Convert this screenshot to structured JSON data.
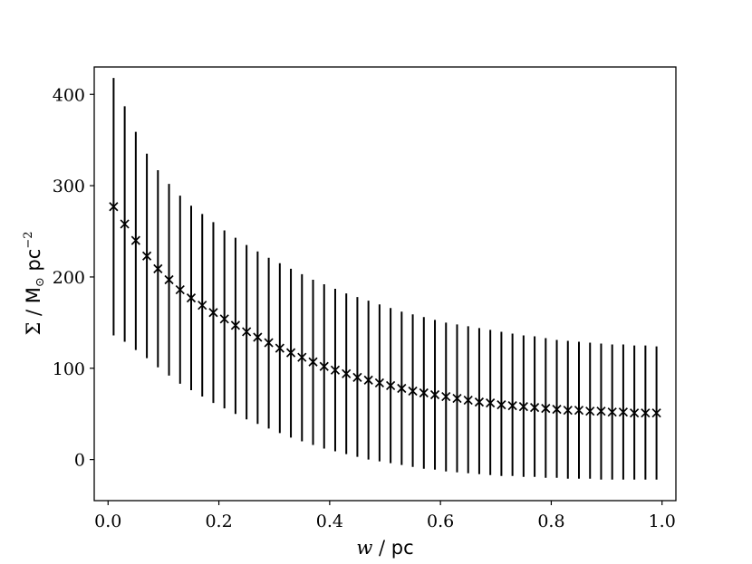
{
  "chart_data": {
    "type": "scatter",
    "xlabel": {
      "var": "w",
      "sep": " / ",
      "unit": "pc"
    },
    "ylabel": {
      "var": "Σ",
      "sep": " / ",
      "unit_main": "M",
      "unit_sub": "⊙",
      "unit_pc": " pc",
      "unit_exp": "−2"
    },
    "xlim": [
      -0.025,
      1.025
    ],
    "ylim": [
      -45,
      430
    ],
    "xticks": [
      {
        "value": 0.0,
        "label": "0.0"
      },
      {
        "value": 0.2,
        "label": "0.2"
      },
      {
        "value": 0.4,
        "label": "0.4"
      },
      {
        "value": 0.6,
        "label": "0.6"
      },
      {
        "value": 0.8,
        "label": "0.8"
      },
      {
        "value": 1.0,
        "label": "1.0"
      }
    ],
    "yticks": [
      {
        "value": 0,
        "label": "0"
      },
      {
        "value": 100,
        "label": "100"
      },
      {
        "value": 200,
        "label": "200"
      },
      {
        "value": 300,
        "label": "300"
      },
      {
        "value": 400,
        "label": "400"
      }
    ],
    "grid": false,
    "marker": "x",
    "color": "#000000",
    "series": [
      {
        "points": [
          {
            "x": 0.01,
            "y": 277,
            "lo": 136,
            "hi": 418
          },
          {
            "x": 0.03,
            "y": 258,
            "lo": 129,
            "hi": 387
          },
          {
            "x": 0.05,
            "y": 240,
            "lo": 120,
            "hi": 359
          },
          {
            "x": 0.07,
            "y": 223,
            "lo": 111,
            "hi": 335
          },
          {
            "x": 0.09,
            "y": 209,
            "lo": 101,
            "hi": 317
          },
          {
            "x": 0.11,
            "y": 197,
            "lo": 92,
            "hi": 302
          },
          {
            "x": 0.13,
            "y": 186,
            "lo": 83,
            "hi": 289
          },
          {
            "x": 0.15,
            "y": 177,
            "lo": 76,
            "hi": 278
          },
          {
            "x": 0.17,
            "y": 169,
            "lo": 69,
            "hi": 269
          },
          {
            "x": 0.19,
            "y": 161,
            "lo": 62,
            "hi": 260
          },
          {
            "x": 0.21,
            "y": 154,
            "lo": 56,
            "hi": 251
          },
          {
            "x": 0.23,
            "y": 147,
            "lo": 50,
            "hi": 243
          },
          {
            "x": 0.25,
            "y": 140,
            "lo": 44,
            "hi": 235
          },
          {
            "x": 0.27,
            "y": 134,
            "lo": 39,
            "hi": 228
          },
          {
            "x": 0.29,
            "y": 128,
            "lo": 34,
            "hi": 221
          },
          {
            "x": 0.31,
            "y": 122,
            "lo": 29,
            "hi": 215
          },
          {
            "x": 0.33,
            "y": 117,
            "lo": 24,
            "hi": 209
          },
          {
            "x": 0.35,
            "y": 112,
            "lo": 20,
            "hi": 203
          },
          {
            "x": 0.37,
            "y": 107,
            "lo": 16,
            "hi": 197
          },
          {
            "x": 0.39,
            "y": 102,
            "lo": 12,
            "hi": 192
          },
          {
            "x": 0.41,
            "y": 98,
            "lo": 9,
            "hi": 187
          },
          {
            "x": 0.43,
            "y": 94,
            "lo": 6,
            "hi": 182
          },
          {
            "x": 0.45,
            "y": 90,
            "lo": 3,
            "hi": 178
          },
          {
            "x": 0.47,
            "y": 87,
            "lo": 0,
            "hi": 174
          },
          {
            "x": 0.49,
            "y": 84,
            "lo": -2,
            "hi": 170
          },
          {
            "x": 0.51,
            "y": 81,
            "lo": -4,
            "hi": 166
          },
          {
            "x": 0.53,
            "y": 78,
            "lo": -6,
            "hi": 162
          },
          {
            "x": 0.55,
            "y": 75,
            "lo": -8,
            "hi": 159
          },
          {
            "x": 0.57,
            "y": 73,
            "lo": -10,
            "hi": 156
          },
          {
            "x": 0.59,
            "y": 71,
            "lo": -11,
            "hi": 153
          },
          {
            "x": 0.61,
            "y": 69,
            "lo": -13,
            "hi": 150
          },
          {
            "x": 0.63,
            "y": 67,
            "lo": -14,
            "hi": 148
          },
          {
            "x": 0.65,
            "y": 65,
            "lo": -15,
            "hi": 146
          },
          {
            "x": 0.67,
            "y": 63,
            "lo": -16,
            "hi": 144
          },
          {
            "x": 0.69,
            "y": 62,
            "lo": -17,
            "hi": 142
          },
          {
            "x": 0.71,
            "y": 60,
            "lo": -18,
            "hi": 140
          },
          {
            "x": 0.73,
            "y": 59,
            "lo": -18,
            "hi": 138
          },
          {
            "x": 0.75,
            "y": 58,
            "lo": -19,
            "hi": 136
          },
          {
            "x": 0.77,
            "y": 57,
            "lo": -19,
            "hi": 135
          },
          {
            "x": 0.79,
            "y": 56,
            "lo": -20,
            "hi": 133
          },
          {
            "x": 0.81,
            "y": 55,
            "lo": -20,
            "hi": 131
          },
          {
            "x": 0.83,
            "y": 54,
            "lo": -21,
            "hi": 130
          },
          {
            "x": 0.85,
            "y": 54,
            "lo": -21,
            "hi": 129
          },
          {
            "x": 0.87,
            "y": 53,
            "lo": -21,
            "hi": 128
          },
          {
            "x": 0.89,
            "y": 53,
            "lo": -22,
            "hi": 127
          },
          {
            "x": 0.91,
            "y": 52,
            "lo": -22,
            "hi": 126
          },
          {
            "x": 0.93,
            "y": 52,
            "lo": -22,
            "hi": 126
          },
          {
            "x": 0.95,
            "y": 51,
            "lo": -22,
            "hi": 125
          },
          {
            "x": 0.97,
            "y": 51,
            "lo": -22,
            "hi": 125
          },
          {
            "x": 0.99,
            "y": 51,
            "lo": -22,
            "hi": 124
          }
        ]
      }
    ]
  }
}
